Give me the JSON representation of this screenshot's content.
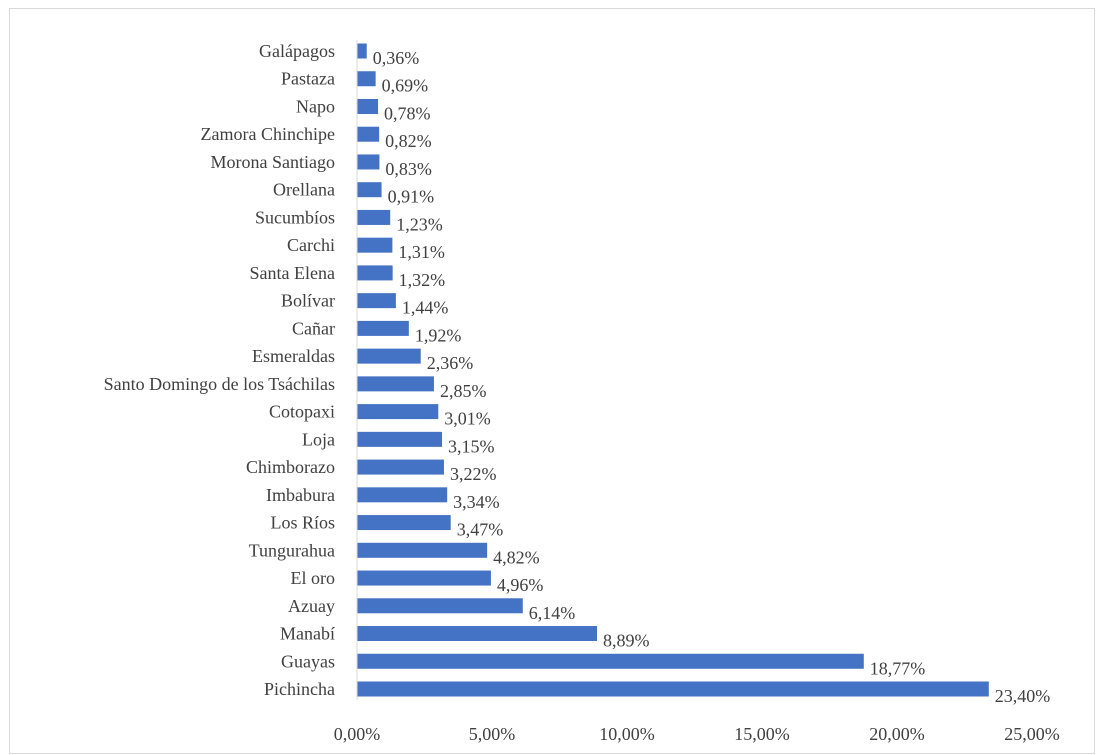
{
  "chart_data": {
    "type": "bar",
    "orientation": "horizontal",
    "categories": [
      "Galápagos",
      "Pastaza",
      "Napo",
      "Zamora Chinchipe",
      "Morona Santiago",
      "Orellana",
      "Sucumbíos",
      "Carchi",
      "Santa Elena",
      "Bolívar",
      "Cañar",
      "Esmeraldas",
      "Santo Domingo de los Tsáchilas",
      "Cotopaxi",
      "Loja",
      "Chimborazo",
      "Imbabura",
      "Los Ríos",
      "Tungurahua",
      "El oro",
      "Azuay",
      "Manabí",
      "Guayas",
      "Pichincha"
    ],
    "values": [
      0.36,
      0.69,
      0.78,
      0.82,
      0.83,
      0.91,
      1.23,
      1.31,
      1.32,
      1.44,
      1.92,
      2.36,
      2.85,
      3.01,
      3.15,
      3.22,
      3.34,
      3.47,
      4.82,
      4.96,
      6.14,
      8.89,
      18.77,
      23.4
    ],
    "value_labels": [
      "0,36%",
      "0,69%",
      "0,78%",
      "0,82%",
      "0,83%",
      "0,91%",
      "1,23%",
      "1,31%",
      "1,32%",
      "1,44%",
      "1,92%",
      "2,36%",
      "2,85%",
      "3,01%",
      "3,15%",
      "3,22%",
      "3,34%",
      "3,47%",
      "4,82%",
      "4,96%",
      "6,14%",
      "8,89%",
      "18,77%",
      "23,40%"
    ],
    "xlim": [
      0,
      25
    ],
    "x_ticks": [
      0,
      5,
      10,
      15,
      20,
      25
    ],
    "x_tick_labels": [
      "0,00%",
      "5,00%",
      "10,00%",
      "15,00%",
      "20,00%",
      "25,00%"
    ],
    "title": "",
    "xlabel": "",
    "ylabel": "",
    "grid": false,
    "legend": "none",
    "bar_color": "#4472c4",
    "text_color": "#404040",
    "axis_color": "#d9d9d9"
  }
}
